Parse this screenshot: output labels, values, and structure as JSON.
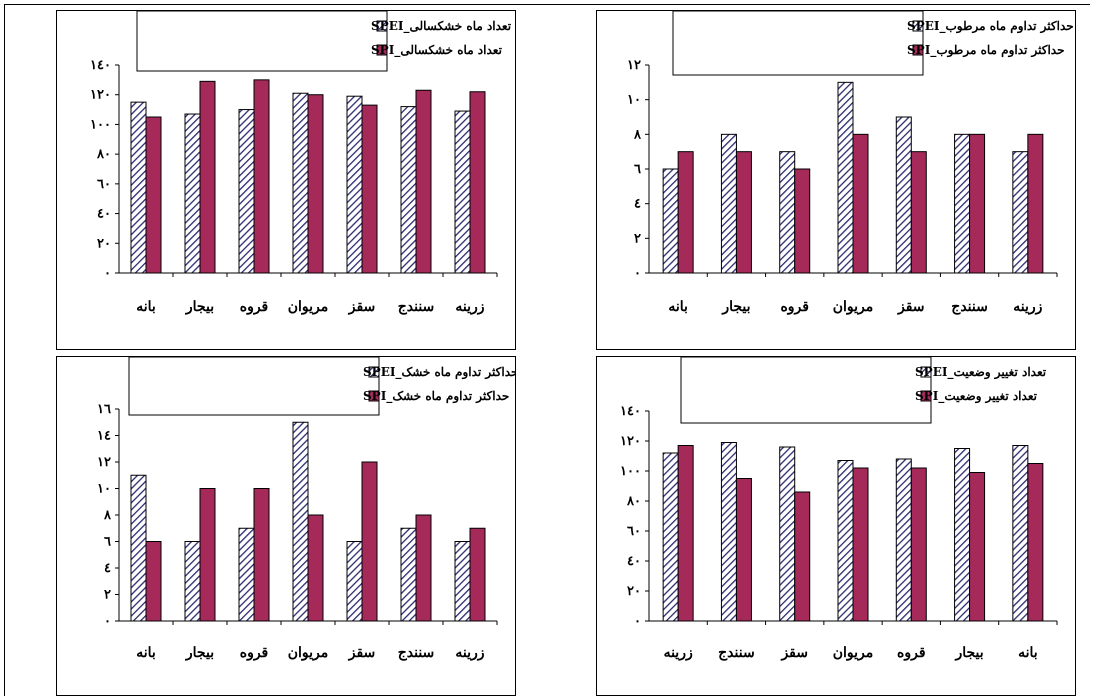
{
  "chart_data": [
    {
      "type": "bar",
      "categories": [
        "بانه",
        "بیجار",
        "قروه",
        "مریوان",
        "سقز",
        "سنندج",
        "زرینه"
      ],
      "ylim": [
        0,
        140
      ],
      "yticks": [
        "۰",
        "۲۰",
        "٤۰",
        "٦۰",
        "۸۰",
        "۱۰۰",
        "۱۲۰",
        "۱٤۰"
      ],
      "ytick_values": [
        0,
        20,
        40,
        60,
        80,
        100,
        120,
        140
      ],
      "series": [
        {
          "name": "تعداد ماه خشکسالی_SPEI",
          "values": [
            115,
            107,
            110,
            121,
            119,
            112,
            109
          ]
        },
        {
          "name": "تعداد ماه خشکسالی_SPI",
          "values": [
            105,
            129,
            130,
            120,
            113,
            123,
            122
          ]
        }
      ],
      "grid": false,
      "legend": "top"
    },
    {
      "type": "bar",
      "categories": [
        "بانه",
        "بیجار",
        "قروه",
        "مریوان",
        "سقز",
        "سنندج",
        "زرینه"
      ],
      "ylim": [
        0,
        12
      ],
      "yticks": [
        "۰",
        "۲",
        "٤",
        "٦",
        "۸",
        "۱۰",
        "۱۲"
      ],
      "ytick_values": [
        0,
        2,
        4,
        6,
        8,
        10,
        12
      ],
      "series": [
        {
          "name": "حداکثر تداوم ماه مرطوب_SPEI",
          "values": [
            6,
            8,
            7,
            11,
            9,
            8,
            7
          ]
        },
        {
          "name": "حداکثر تداوم ماه مرطوب_SPI",
          "values": [
            7,
            7,
            6,
            8,
            7,
            8,
            8
          ]
        }
      ],
      "grid": false,
      "legend": "top"
    },
    {
      "type": "bar",
      "categories": [
        "بانه",
        "بیجار",
        "قروه",
        "مریوان",
        "سقز",
        "سنندج",
        "زرینه"
      ],
      "ylim": [
        0,
        16
      ],
      "yticks": [
        "۰",
        "۲",
        "٤",
        "٦",
        "۸",
        "۱۰",
        "۱۲",
        "۱٤",
        "۱٦"
      ],
      "ytick_values": [
        0,
        2,
        4,
        6,
        8,
        10,
        12,
        14,
        16
      ],
      "series": [
        {
          "name": "حداکثر تداوم ماه خشک_SPEI",
          "values": [
            11,
            6,
            7,
            15,
            6,
            7,
            6
          ]
        },
        {
          "name": "حداکثر تداوم ماه خشک_SPI",
          "values": [
            6,
            10,
            10,
            8,
            12,
            8,
            7
          ]
        }
      ],
      "grid": false,
      "legend": "top"
    },
    {
      "type": "bar",
      "categories": [
        "زرینه",
        "سنندج",
        "سقز",
        "مریوان",
        "قروه",
        "بیجار",
        "بانه"
      ],
      "ylim": [
        0,
        140
      ],
      "yticks": [
        "۰",
        "۲۰",
        "٤۰",
        "٦۰",
        "۸۰",
        "۱۰۰",
        "۱۲۰",
        "۱٤۰"
      ],
      "ytick_values": [
        0,
        20,
        40,
        60,
        80,
        100,
        120,
        140
      ],
      "series": [
        {
          "name": "تعداد تغییر وضعیت_SPEI",
          "values": [
            112,
            119,
            116,
            107,
            108,
            115,
            117
          ]
        },
        {
          "name": "تعداد تغییر وضعیت_SPI",
          "values": [
            117,
            95,
            86,
            102,
            102,
            99,
            105
          ]
        }
      ],
      "grid": false,
      "legend": "top"
    }
  ],
  "colors": {
    "spei_hatch": "#2a2a6e",
    "spei_bg": "#ffffff",
    "spi_fill": "#a52a5a",
    "axis": "#000000"
  }
}
